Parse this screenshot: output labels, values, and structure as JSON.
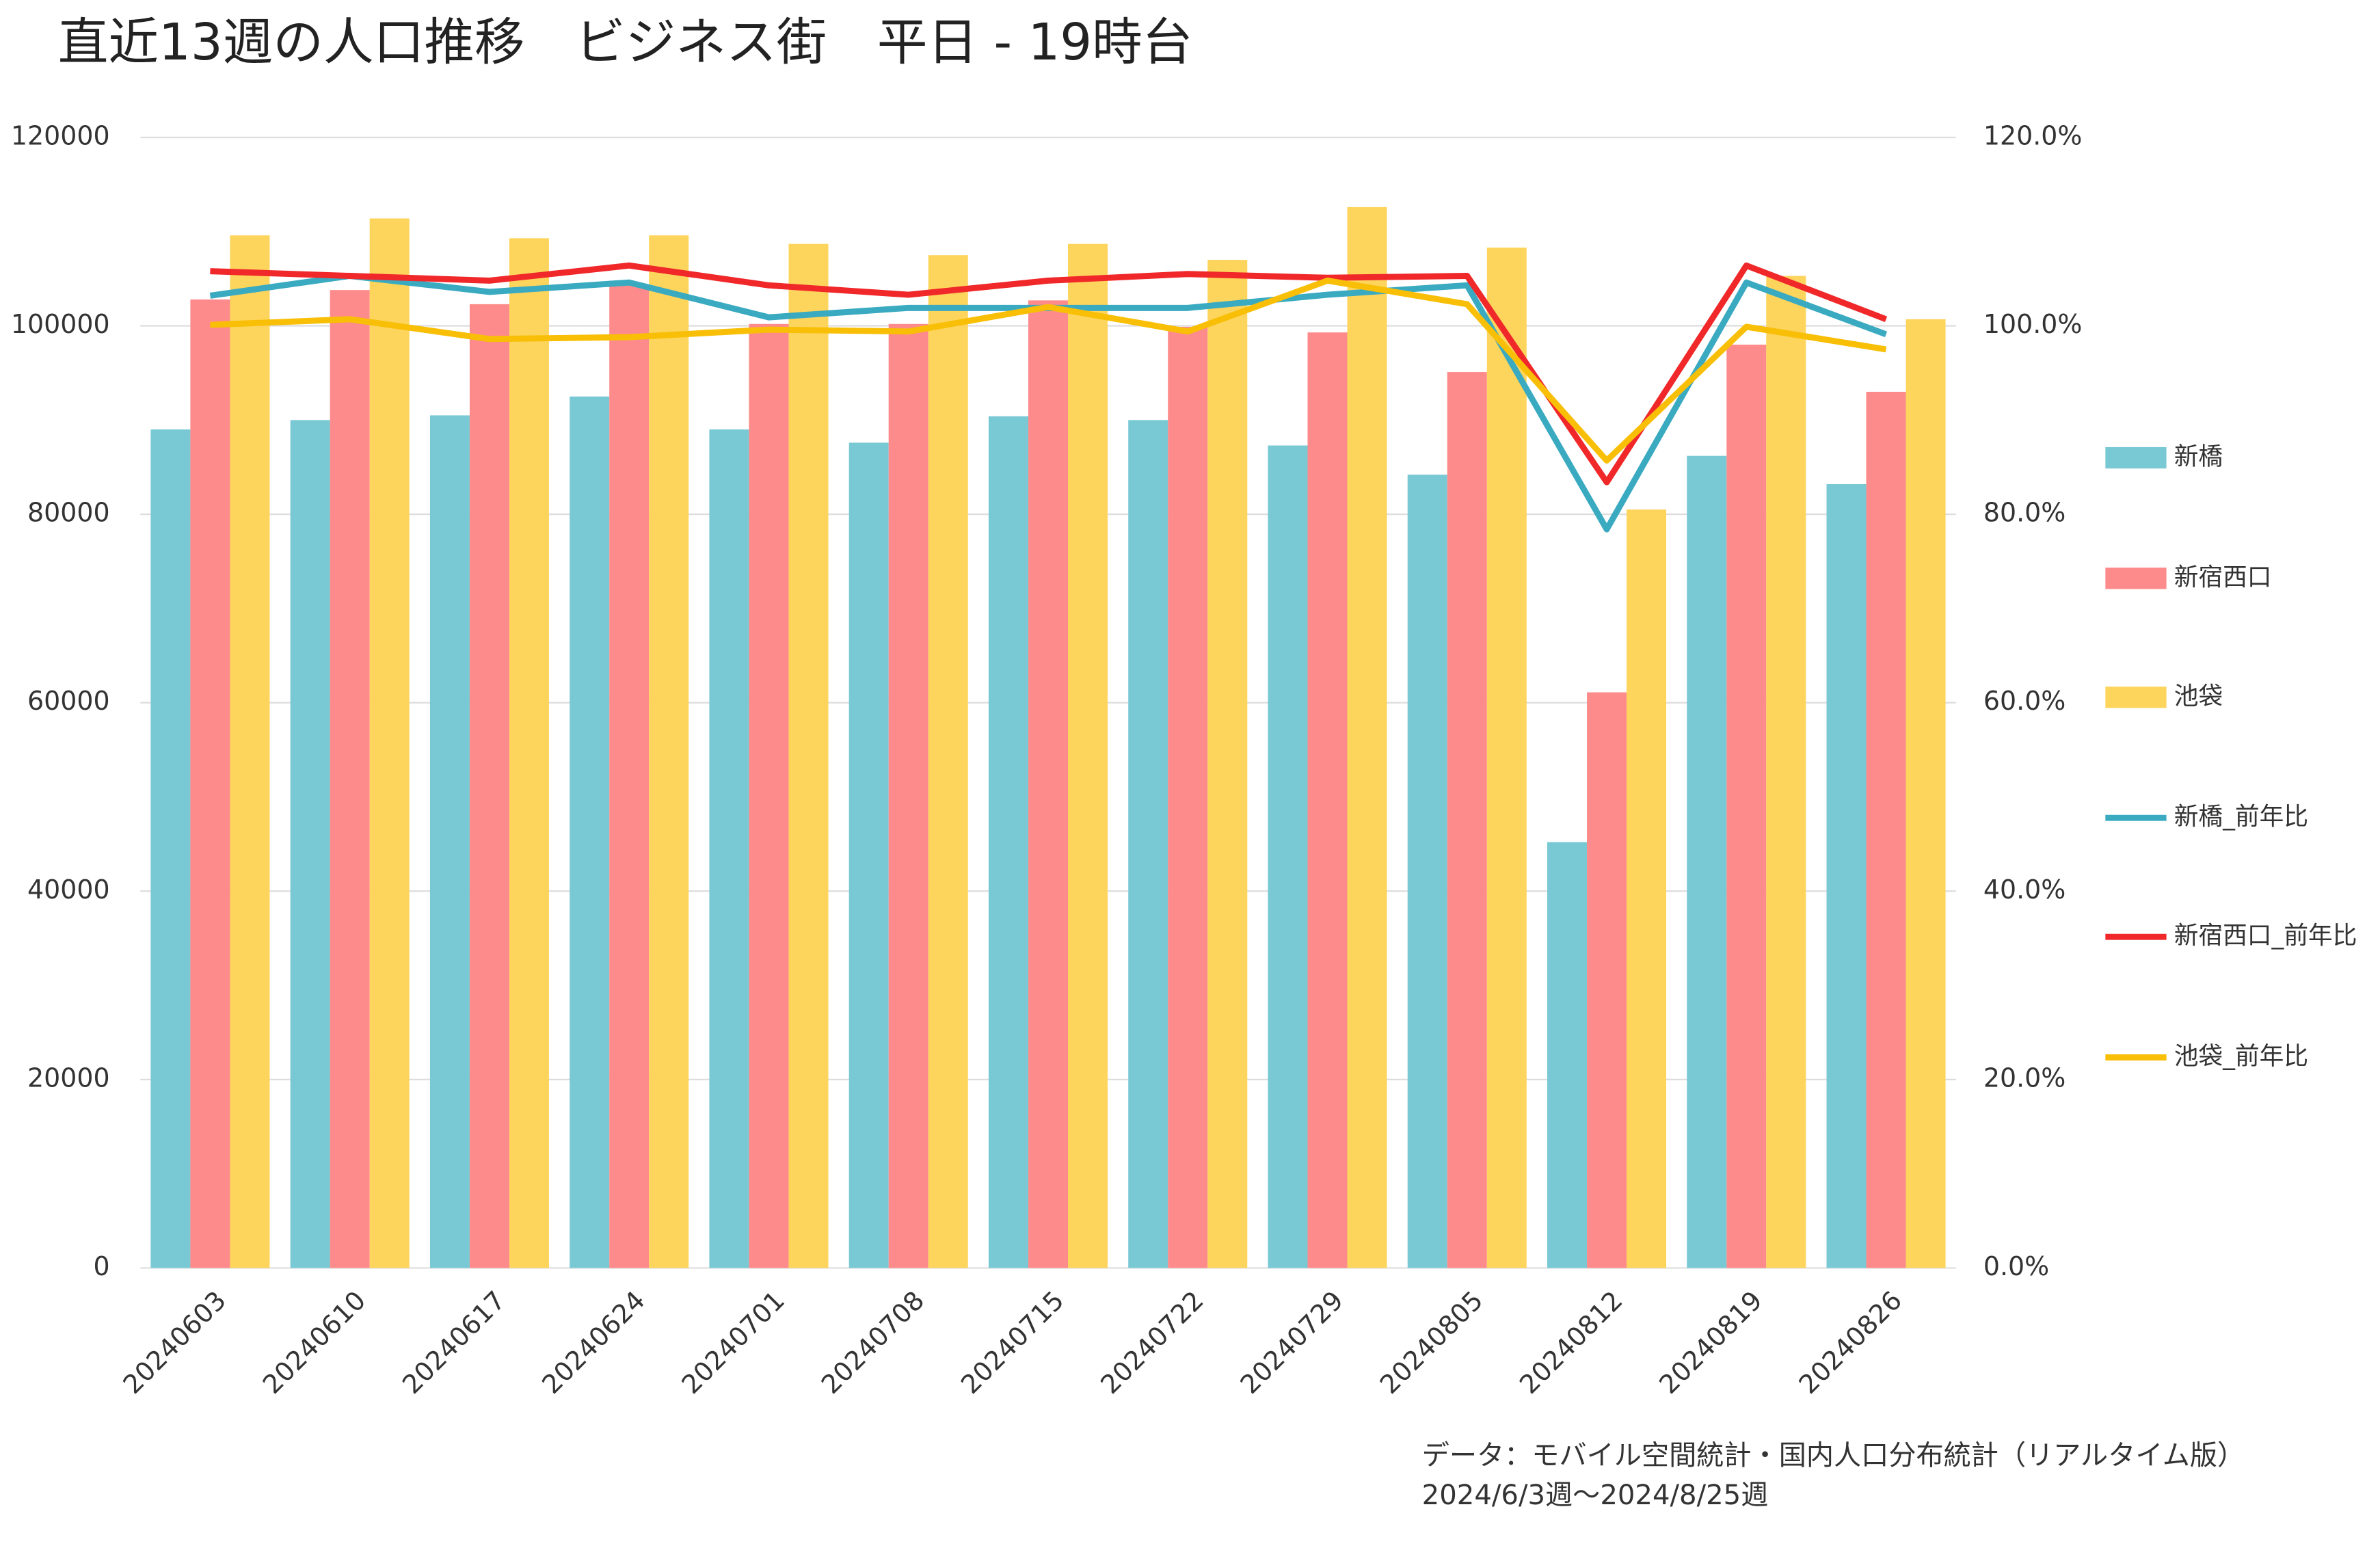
{
  "chart_data": {
    "type": "bar_line",
    "title": "直近13週の人口推移　ビジネス街　平日 - 19時台",
    "categories": [
      "20240603",
      "20240610",
      "20240617",
      "20240624",
      "20240701",
      "20240708",
      "20240715",
      "20240722",
      "20240729",
      "20240805",
      "20240812",
      "20240819",
      "20240826"
    ],
    "series": [
      {
        "name": "新橋",
        "type": "bar",
        "color": "#79c9d5",
        "values": [
          89000,
          90000,
          90500,
          92500,
          89000,
          87600,
          90400,
          90000,
          87300,
          84200,
          45200,
          86200,
          83200
        ]
      },
      {
        "name": "新宿西口",
        "type": "bar",
        "color": "#fd8b8b",
        "values": [
          102800,
          103800,
          102300,
          104300,
          100200,
          100200,
          102700,
          99900,
          99300,
          95100,
          61100,
          98000,
          93000
        ]
      },
      {
        "name": "池袋",
        "type": "bar",
        "color": "#fdd45c",
        "values": [
          109600,
          111400,
          109300,
          109600,
          108700,
          107500,
          108700,
          107000,
          112600,
          108300,
          80500,
          105300,
          100700
        ]
      },
      {
        "name": "新橋_前年比",
        "type": "line",
        "axis": "y2",
        "color": "#3aaac1",
        "values": [
          103.2,
          105.3,
          103.6,
          104.6,
          100.9,
          101.9,
          101.9,
          101.9,
          103.3,
          104.3,
          78.4,
          104.6,
          99.1
        ]
      },
      {
        "name": "新宿西口_前年比",
        "type": "line",
        "axis": "y2",
        "color": "#f0282a",
        "values": [
          105.8,
          105.3,
          104.8,
          106.4,
          104.3,
          103.3,
          104.8,
          105.5,
          105.1,
          105.3,
          83.4,
          106.4,
          100.7
        ]
      },
      {
        "name": "池袋_前年比",
        "type": "line",
        "axis": "y2",
        "color": "#f8bf06",
        "values": [
          100.1,
          100.7,
          98.6,
          98.8,
          99.6,
          99.4,
          102.0,
          99.4,
          104.8,
          102.3,
          85.7,
          99.9,
          97.5
        ]
      }
    ],
    "ylim": [
      0,
      120000
    ],
    "yticks": [
      0,
      20000,
      40000,
      60000,
      80000,
      100000,
      120000
    ],
    "y2lim": [
      0,
      120
    ],
    "y2ticks": [
      {
        "value": 0,
        "label": "0.0%"
      },
      {
        "value": 20,
        "label": "20.0%"
      },
      {
        "value": 40,
        "label": "40.0%"
      },
      {
        "value": 60,
        "label": "60.0%"
      },
      {
        "value": 80,
        "label": "80.0%"
      },
      {
        "value": 100,
        "label": "100.0%"
      },
      {
        "value": 120,
        "label": "120.0%"
      }
    ],
    "grid": true,
    "legend": "right",
    "notes": [
      "データ：モバイル空間統計・国内人口分布統計（リアルタイム版）",
      "2024/6/3週～2024/8/25週"
    ]
  }
}
